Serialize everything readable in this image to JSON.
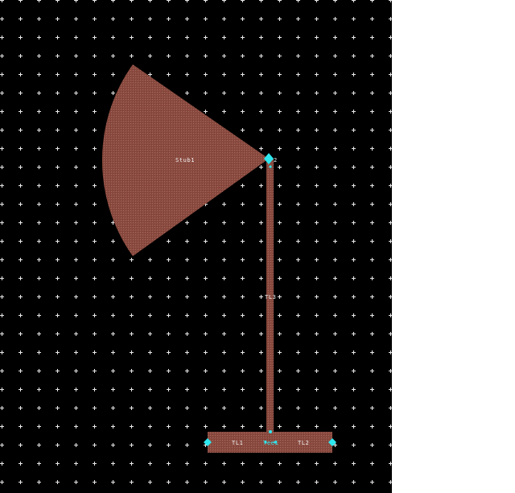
{
  "colors": {
    "background": "#000000",
    "grid_marker": "#e8e8e8",
    "metal": "#8a4a3f",
    "metal_texture": "#a36a5f",
    "pin": "#2ee8f0",
    "label": "#f2f2f2",
    "margin": "#ffffff"
  },
  "labels": {
    "stub": "Stub1",
    "tl3": "TL3",
    "tl1": "TL1",
    "tl2": "TL2",
    "tee": "Tee1",
    "pin_top": "2"
  },
  "components": [
    {
      "id": "Stub1",
      "kind": "radial-stub"
    },
    {
      "id": "TL3",
      "kind": "transmission-line"
    },
    {
      "id": "TL1",
      "kind": "transmission-line"
    },
    {
      "id": "TL2",
      "kind": "transmission-line"
    },
    {
      "id": "Tee1",
      "kind": "tee-junction"
    }
  ]
}
